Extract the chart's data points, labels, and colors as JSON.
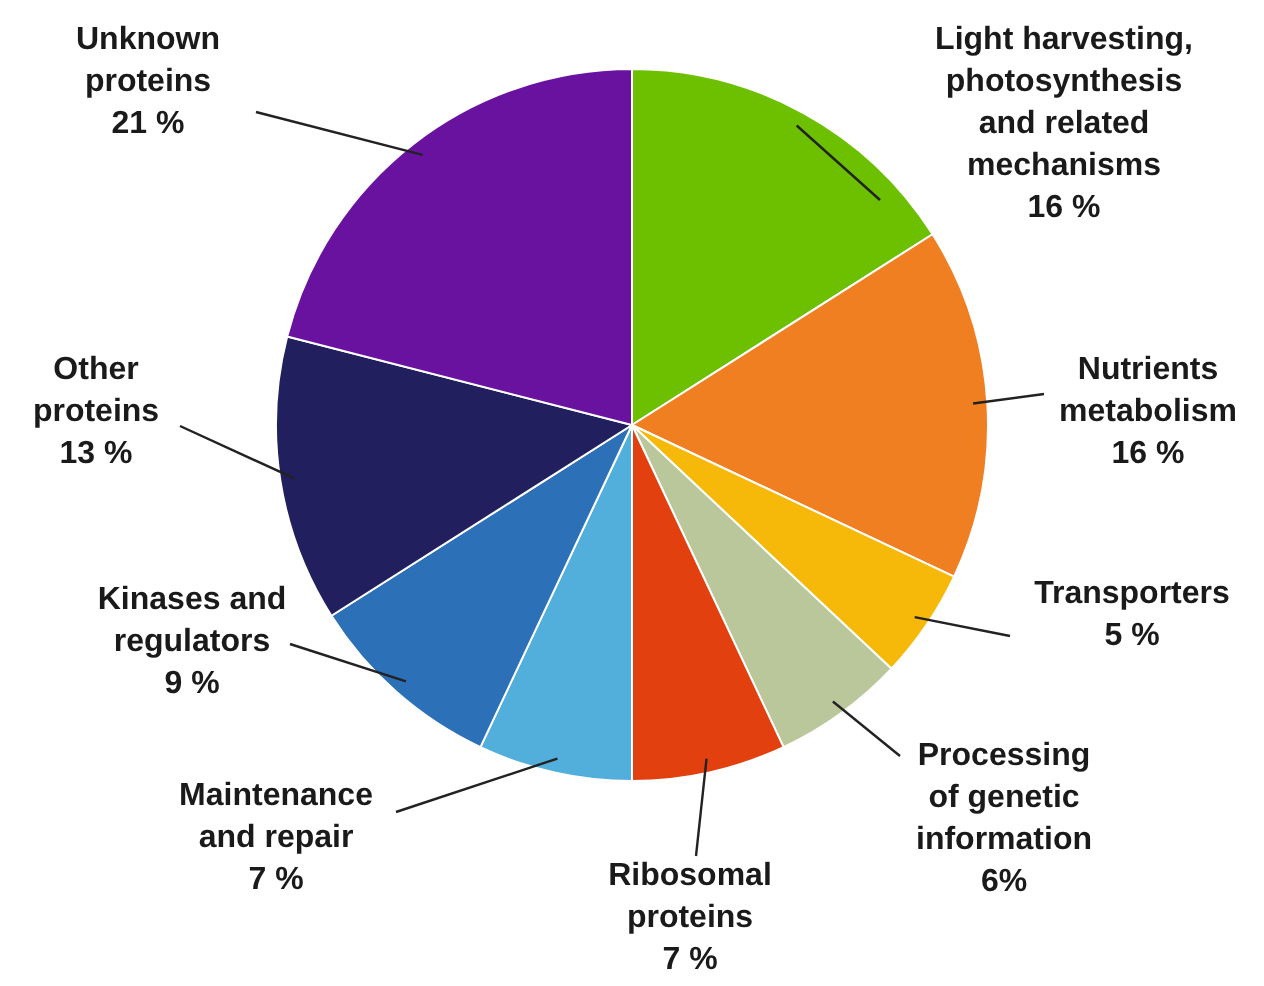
{
  "chart_data": {
    "type": "pie",
    "categories": [
      "Light harvesting,\nphotosynthesis\nand related\nmechanisms",
      "Nutrients\nmetabolism",
      "Transporters",
      "Processing\nof genetic\ninformation",
      "Ribosomal\nproteins",
      "Maintenance\nand repair",
      "Kinases and\nregulators",
      "Other\nproteins",
      "Unknown\nproteins"
    ],
    "values": [
      16,
      16,
      5,
      6,
      7,
      7,
      9,
      13,
      21
    ],
    "value_labels": [
      "16 %",
      "16 %",
      "5 %",
      "6%",
      "7 %",
      "7 %",
      "9 %",
      "13 %",
      "21 %"
    ],
    "colors": [
      "#6cc000",
      "#f07f22",
      "#f6b90a",
      "#bac79b",
      "#e2400f",
      "#52aedb",
      "#2c71b8",
      "#221f5e",
      "#6a12a0"
    ],
    "legend": false
  }
}
